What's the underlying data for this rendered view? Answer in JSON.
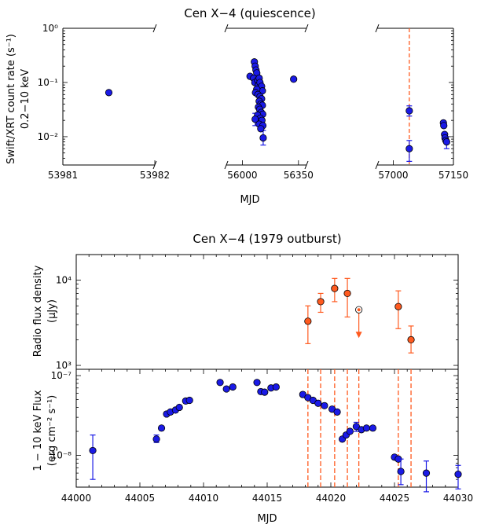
{
  "chart_data": [
    {
      "type": "scatter",
      "title": "Cen X−4 (quiescence)",
      "ylabel": "Swift/XRT count rate (s⁻¹)",
      "ylabel2": "0.2−10 keV",
      "xlabel": "MJD",
      "yscale": "log",
      "ylim": [
        0.003,
        1
      ],
      "ytick_labels": [
        "10⁻²",
        "10⁻¹",
        "10⁰"
      ],
      "broken_x_axis": true,
      "segments": [
        {
          "xlim": [
            53981,
            53982
          ],
          "ticks": [
            "53981",
            "53982"
          ]
        },
        {
          "xlim": [
            55900,
            56400
          ],
          "ticks": [
            "56000",
            "56350"
          ]
        },
        {
          "xlim": [
            56960,
            57150
          ],
          "ticks": [
            "57000",
            "57150"
          ]
        }
      ],
      "marker_color": "#1a1ae6",
      "vline_color": "#ff5a1f",
      "points": [
        {
          "x": 53981.5,
          "y": 0.065
        },
        {
          "x": 56048,
          "y": 0.13
        },
        {
          "x": 56075,
          "y": 0.24
        },
        {
          "x": 56080,
          "y": 0.2
        },
        {
          "x": 56085,
          "y": 0.17
        },
        {
          "x": 56090,
          "y": 0.15
        },
        {
          "x": 56070,
          "y": 0.12
        },
        {
          "x": 56078,
          "y": 0.1
        },
        {
          "x": 56095,
          "y": 0.11
        },
        {
          "x": 56100,
          "y": 0.09
        },
        {
          "x": 56105,
          "y": 0.12
        },
        {
          "x": 56110,
          "y": 0.1
        },
        {
          "x": 56115,
          "y": 0.08
        },
        {
          "x": 56120,
          "y": 0.085
        },
        {
          "x": 56125,
          "y": 0.07
        },
        {
          "x": 56090,
          "y": 0.075
        },
        {
          "x": 56082,
          "y": 0.065
        },
        {
          "x": 56097,
          "y": 0.06
        },
        {
          "x": 56110,
          "y": 0.055
        },
        {
          "x": 56120,
          "y": 0.05
        },
        {
          "x": 56105,
          "y": 0.045
        },
        {
          "x": 56115,
          "y": 0.04
        },
        {
          "x": 56125,
          "y": 0.038
        },
        {
          "x": 56100,
          "y": 0.035
        },
        {
          "x": 56108,
          "y": 0.032
        },
        {
          "x": 56118,
          "y": 0.028
        },
        {
          "x": 56127,
          "y": 0.026
        },
        {
          "x": 56095,
          "y": 0.025
        },
        {
          "x": 56112,
          "y": 0.022
        },
        {
          "x": 56080,
          "y": 0.021
        },
        {
          "x": 56122,
          "y": 0.02
        },
        {
          "x": 56105,
          "y": 0.017
        },
        {
          "x": 56128,
          "y": 0.016
        },
        {
          "x": 56115,
          "y": 0.014
        },
        {
          "x": 56130,
          "y": 0.0095
        },
        {
          "x": 56320,
          "y": 0.115
        },
        {
          "x": 57040,
          "y": 0.03
        },
        {
          "x": 57040,
          "y": 0.006
        },
        {
          "x": 57125,
          "y": 0.018
        },
        {
          "x": 57126,
          "y": 0.016
        },
        {
          "x": 57128,
          "y": 0.011
        },
        {
          "x": 57129,
          "y": 0.0095
        },
        {
          "x": 57131,
          "y": 0.0085
        },
        {
          "x": 57133,
          "y": 0.008
        }
      ],
      "error_bars": [
        {
          "x": 56080,
          "ylo": 0.016,
          "yhi": 0.027
        },
        {
          "x": 56130,
          "ylo": 0.007,
          "yhi": 0.013
        },
        {
          "x": 57040,
          "ylo": 0.024,
          "yhi": 0.037
        },
        {
          "x": 57040,
          "ylo": 0.0035,
          "yhi": 0.0085
        },
        {
          "x": 57133,
          "ylo": 0.006,
          "yhi": 0.01
        }
      ],
      "vlines": [
        57040
      ]
    },
    {
      "type": "scatter",
      "title": "Cen X−4 (1979 outburst)",
      "ylabel": "Radio flux density",
      "ylabel2": "(μJy)",
      "yscale": "log",
      "ylim": [
        900,
        20000
      ],
      "ytick_labels": [
        "10³",
        "10⁴"
      ],
      "marker_color": "#ff5a1f",
      "points": [
        {
          "x": 44018.2,
          "y": 3300,
          "ylo": 1800,
          "yhi": 5000
        },
        {
          "x": 44019.2,
          "y": 5600,
          "ylo": 4200,
          "yhi": 7000
        },
        {
          "x": 44020.3,
          "y": 8000,
          "ylo": 5600,
          "yhi": 10500
        },
        {
          "x": 44021.3,
          "y": 7000,
          "ylo": 3700,
          "yhi": 10500
        },
        {
          "x": 44025.3,
          "y": 4900,
          "ylo": 2700,
          "yhi": 7500
        },
        {
          "x": 44026.3,
          "y": 2000,
          "ylo": 1400,
          "yhi": 2900
        }
      ],
      "upper_limits": [
        {
          "x": 44022.2,
          "y": 4500
        }
      ]
    },
    {
      "type": "scatter",
      "ylabel": "1 − 10 keV Flux",
      "ylabel2": "(erg cm⁻² s⁻¹)",
      "xlabel": "MJD",
      "xlim": [
        44000,
        44030
      ],
      "xticks": [
        "44000",
        "44005",
        "44010",
        "44015",
        "44020",
        "44025",
        "44030"
      ],
      "yscale": "log",
      "ylim": [
        4e-09,
        1.2e-07
      ],
      "ytick_labels": [
        "10⁻⁸",
        "10⁻⁷"
      ],
      "marker_color": "#1a1ae6",
      "vline_color": "#ff5a1f",
      "points": [
        {
          "x": 44001.3,
          "y": 1.15e-08,
          "ylo": 5e-09,
          "yhi": 1.8e-08
        },
        {
          "x": 44006.3,
          "y": 1.6e-08,
          "ylo": 1.45e-08,
          "yhi": 1.8e-08
        },
        {
          "x": 44006.7,
          "y": 2.2e-08
        },
        {
          "x": 44007.1,
          "y": 3.3e-08
        },
        {
          "x": 44007.4,
          "y": 3.5e-08
        },
        {
          "x": 44007.8,
          "y": 3.7e-08
        },
        {
          "x": 44008.1,
          "y": 4e-08
        },
        {
          "x": 44008.6,
          "y": 4.8e-08
        },
        {
          "x": 44008.9,
          "y": 4.9e-08
        },
        {
          "x": 44011.3,
          "y": 8.2e-08
        },
        {
          "x": 44011.8,
          "y": 6.8e-08
        },
        {
          "x": 44012.3,
          "y": 7.2e-08
        },
        {
          "x": 44014.2,
          "y": 8.2e-08
        },
        {
          "x": 44014.5,
          "y": 6.3e-08
        },
        {
          "x": 44014.8,
          "y": 6.2e-08
        },
        {
          "x": 44015.3,
          "y": 7e-08
        },
        {
          "x": 44015.7,
          "y": 7.2e-08
        },
        {
          "x": 44017.8,
          "y": 5.8e-08
        },
        {
          "x": 44018.2,
          "y": 5.3e-08
        },
        {
          "x": 44018.6,
          "y": 4.9e-08
        },
        {
          "x": 44019,
          "y": 4.5e-08
        },
        {
          "x": 44019.5,
          "y": 4.2e-08
        },
        {
          "x": 44020.1,
          "y": 3.8e-08
        },
        {
          "x": 44020.5,
          "y": 3.5e-08
        },
        {
          "x": 44020.9,
          "y": 1.6e-08
        },
        {
          "x": 44021.2,
          "y": 1.8e-08
        },
        {
          "x": 44021.5,
          "y": 2e-08
        },
        {
          "x": 44022.0,
          "y": 2.3e-08,
          "ylo": 2e-08,
          "yhi": 2.6e-08
        },
        {
          "x": 44022.4,
          "y": 2.1e-08
        },
        {
          "x": 44022.8,
          "y": 2.2e-08
        },
        {
          "x": 44023.3,
          "y": 2.2e-08
        },
        {
          "x": 44025,
          "y": 9.5e-09
        },
        {
          "x": 44025.3,
          "y": 9e-09
        },
        {
          "x": 44025.5,
          "y": 6.3e-09,
          "ylo": 4.3e-09,
          "yhi": 9e-09
        },
        {
          "x": 44027.5,
          "y": 6e-09,
          "ylo": 3.5e-09,
          "yhi": 8.5e-09
        },
        {
          "x": 44030,
          "y": 5.8e-09,
          "ylo": 3.8e-09,
          "yhi": 7.5e-09
        }
      ],
      "vlines": [
        44018.2,
        44019.2,
        44020.3,
        44021.3,
        44022.2,
        44025.3,
        44026.3
      ]
    }
  ]
}
